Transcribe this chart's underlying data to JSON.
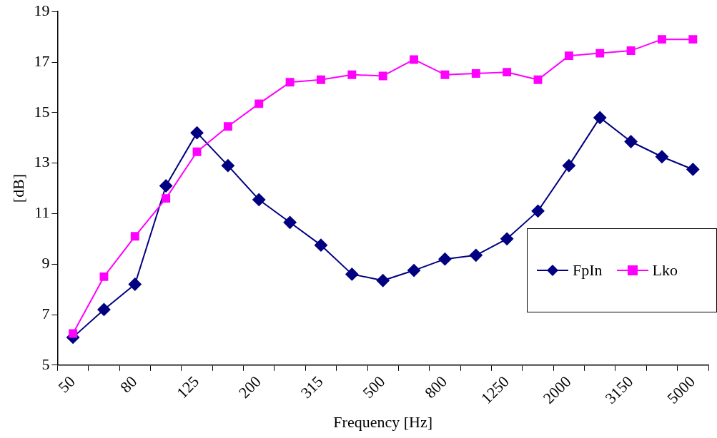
{
  "chart_data": {
    "type": "line",
    "xlabel": "Frequency [Hz]",
    "ylabel": "[dB]",
    "categories": [
      "50",
      null,
      "80",
      null,
      "125",
      null,
      "200",
      null,
      "315",
      null,
      "500",
      null,
      "800",
      null,
      "1250",
      null,
      "2000",
      null,
      "3150",
      null,
      "5000"
    ],
    "series": [
      {
        "name": "FpIn",
        "color": "#000080",
        "marker": "diamond",
        "values": [
          6.1,
          7.2,
          8.2,
          12.1,
          14.2,
          12.9,
          11.55,
          10.65,
          9.75,
          8.6,
          8.35,
          8.75,
          9.2,
          9.35,
          10.0,
          11.1,
          12.9,
          14.8,
          13.85,
          13.25,
          12.75
        ]
      },
      {
        "name": "Lko",
        "color": "#ff00ff",
        "marker": "square",
        "values": [
          6.25,
          8.5,
          10.1,
          11.6,
          13.45,
          14.45,
          15.35,
          16.2,
          16.3,
          16.5,
          16.45,
          17.1,
          16.5,
          16.55,
          16.6,
          16.3,
          17.25,
          17.35,
          17.45,
          17.9,
          17.9
        ]
      }
    ],
    "ylim": [
      5,
      19
    ],
    "yticks": [
      5,
      7,
      9,
      11,
      13,
      15,
      17,
      19
    ],
    "grid": false,
    "legend": "bottom right",
    "line_style": "solid"
  }
}
